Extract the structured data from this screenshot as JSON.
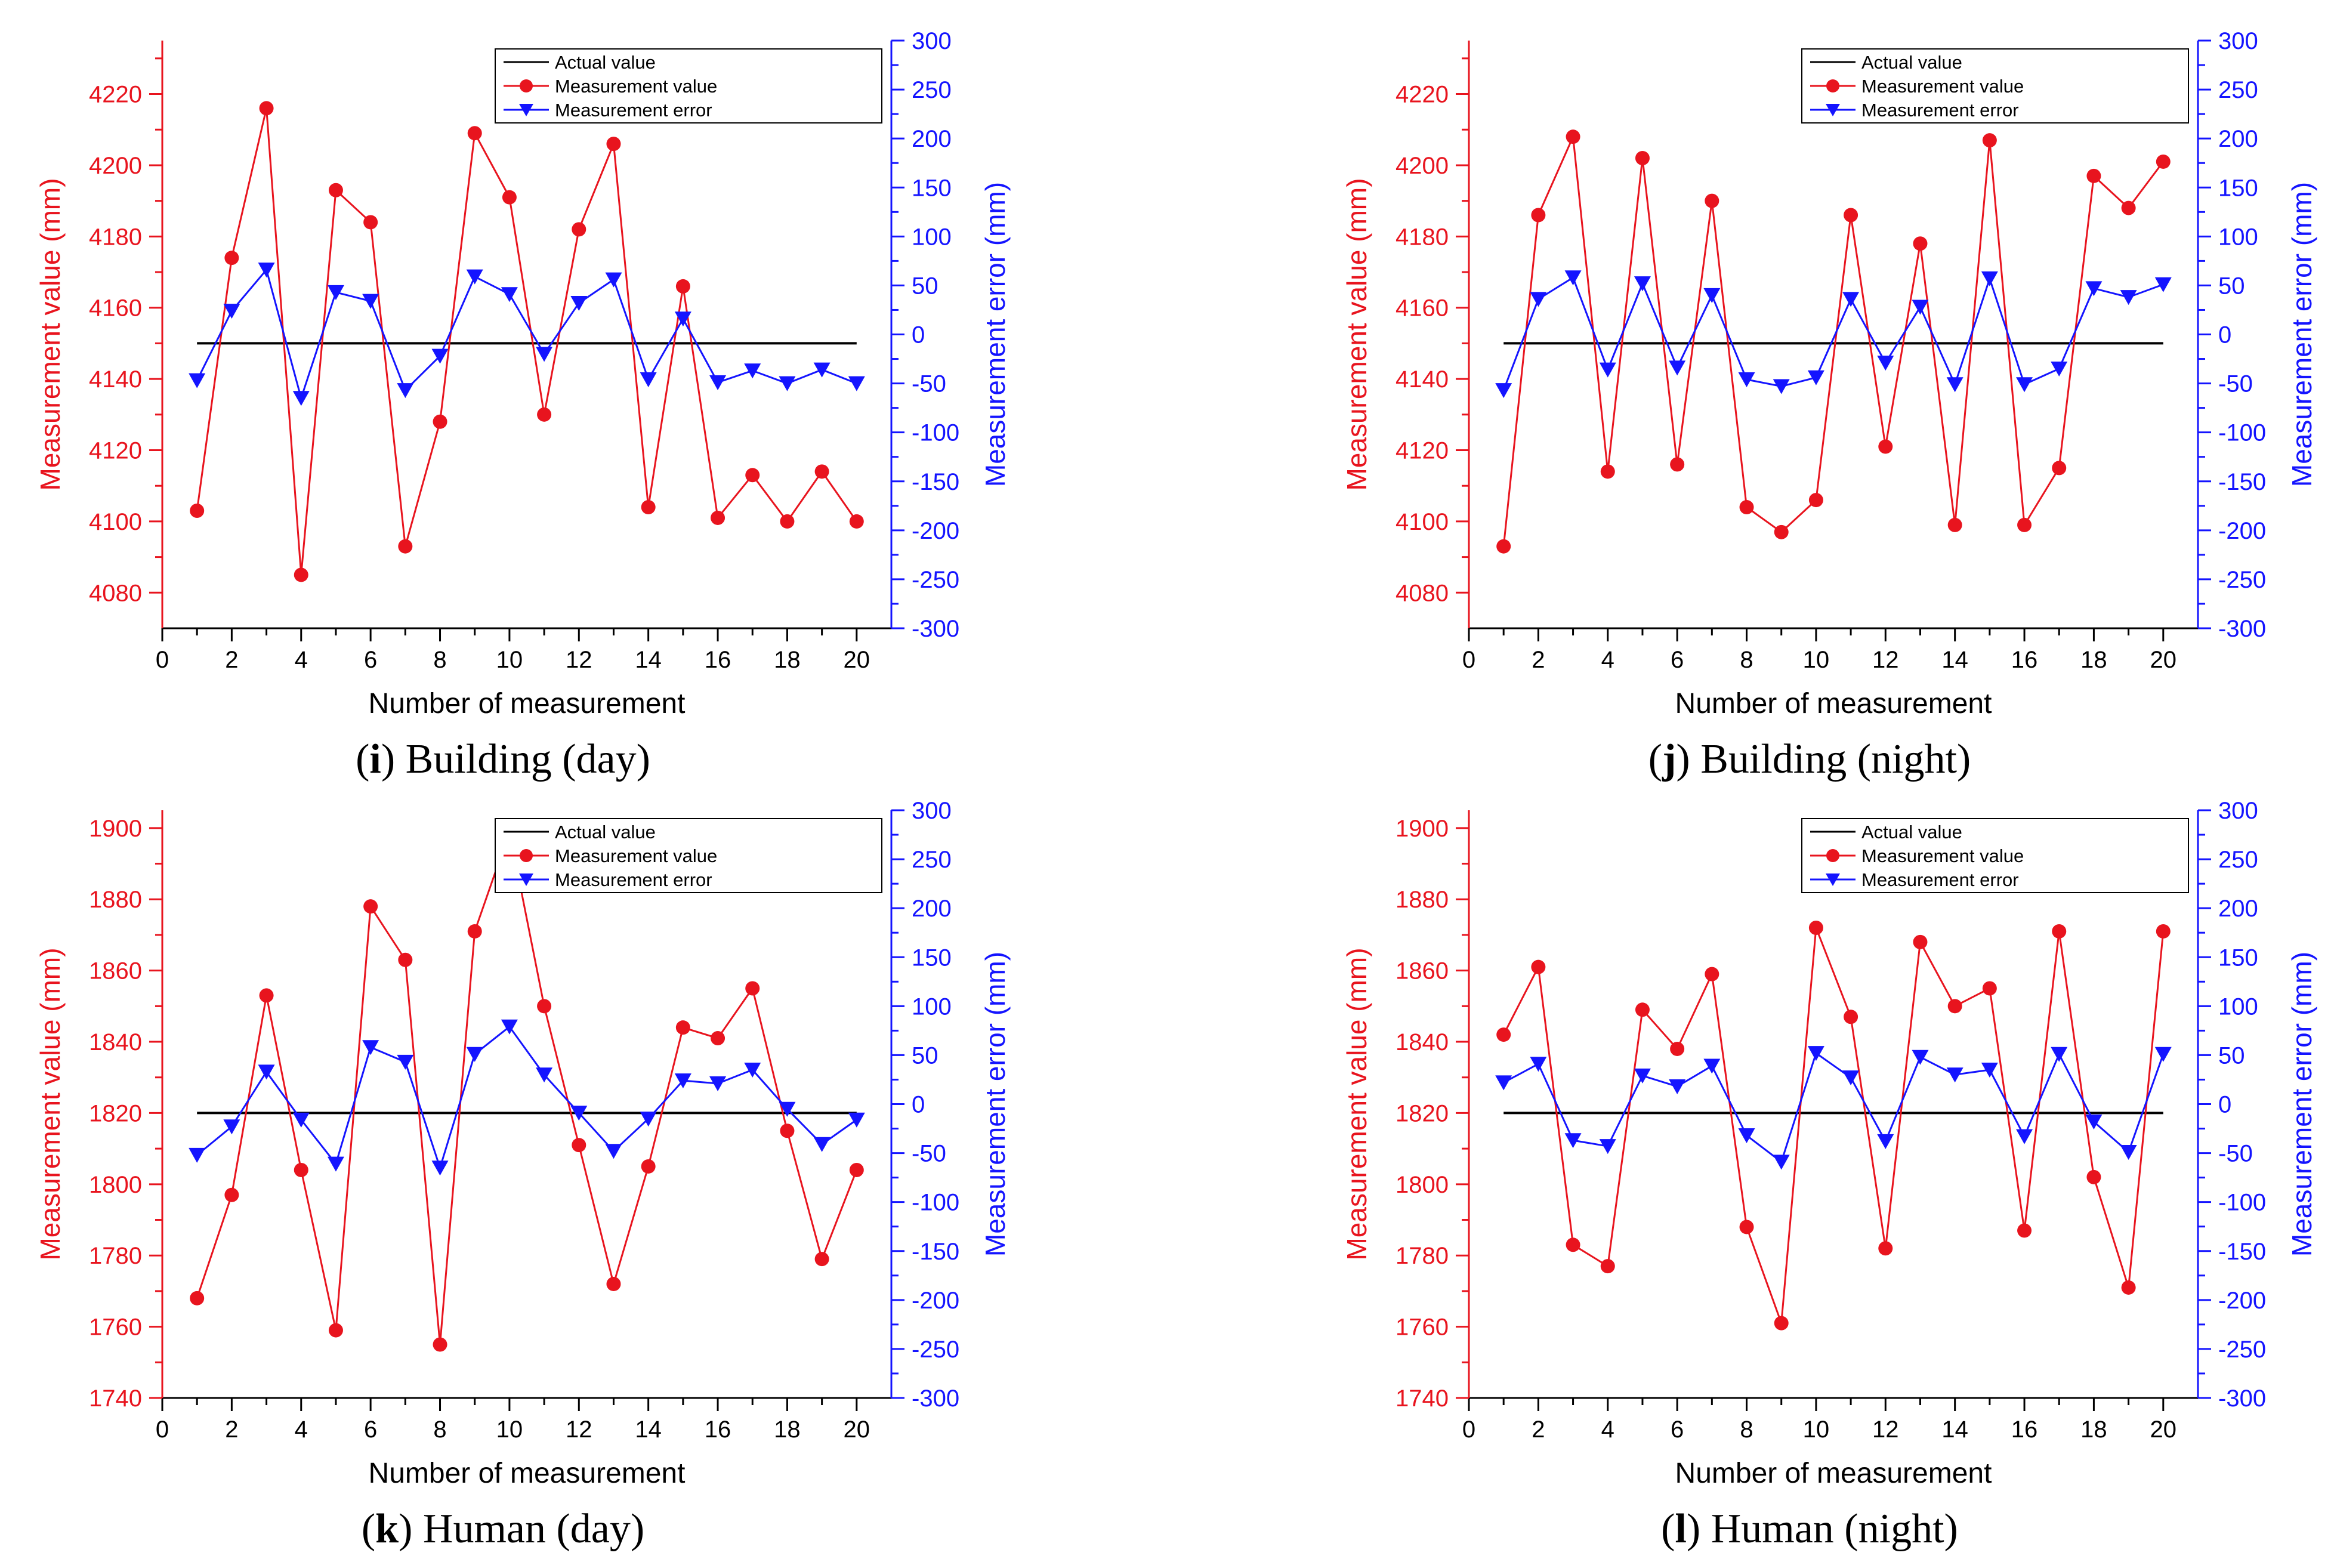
{
  "chart_data": [
    {
      "type": "line",
      "caption": {
        "letter": "i",
        "text": " Building (day)"
      },
      "xlabel": "Number of measurement",
      "ylabel_left": "Measurement value (mm)",
      "ylabel_right": "Measurement error (mm)",
      "xlim": [
        0,
        21
      ],
      "xticks": [
        0,
        2,
        4,
        6,
        8,
        10,
        12,
        14,
        16,
        18,
        20
      ],
      "ylim_left": [
        4070,
        4235
      ],
      "yticks_left": [
        4080,
        4100,
        4120,
        4140,
        4160,
        4180,
        4200,
        4220
      ],
      "ylim_right": [
        -300,
        300
      ],
      "yticks_right": [
        -300,
        -250,
        -200,
        -150,
        -100,
        -50,
        0,
        50,
        100,
        150,
        200,
        250,
        300
      ],
      "legend": "top-right",
      "colors": {
        "actual": "#000000",
        "value": "#e8141e",
        "error": "#1414ff"
      },
      "x": [
        1,
        2,
        3,
        4,
        5,
        6,
        7,
        8,
        9,
        10,
        11,
        12,
        13,
        14,
        15,
        16,
        17,
        18,
        19,
        20
      ],
      "series": [
        {
          "name": "Actual value",
          "axis": "left",
          "marker": "none",
          "values": [
            4150,
            4150,
            4150,
            4150,
            4150,
            4150,
            4150,
            4150,
            4150,
            4150,
            4150,
            4150,
            4150,
            4150,
            4150,
            4150,
            4150,
            4150,
            4150,
            4150
          ]
        },
        {
          "name": "Measurement value",
          "axis": "left",
          "marker": "circle",
          "values": [
            4103,
            4174,
            4216,
            4085,
            4193,
            4184,
            4093,
            4128,
            4209,
            4191,
            4130,
            4182,
            4206,
            4104,
            4166,
            4101,
            4113,
            4100,
            4114,
            4100
          ]
        },
        {
          "name": "Measurement error",
          "axis": "right",
          "marker": "triangle-down",
          "values": [
            -47,
            24,
            66,
            -65,
            43,
            34,
            -57,
            -22,
            59,
            41,
            -20,
            32,
            56,
            -46,
            16,
            -49,
            -37,
            -50,
            -36,
            -50
          ]
        }
      ]
    },
    {
      "type": "line",
      "caption": {
        "letter": "j",
        "text": " Building (night)"
      },
      "xlabel": "Number of measurement",
      "ylabel_left": "Measurement value (mm)",
      "ylabel_right": "Measurement error (mm)",
      "xlim": [
        0,
        21
      ],
      "xticks": [
        0,
        2,
        4,
        6,
        8,
        10,
        12,
        14,
        16,
        18,
        20
      ],
      "ylim_left": [
        4070,
        4235
      ],
      "yticks_left": [
        4080,
        4100,
        4120,
        4140,
        4160,
        4180,
        4200,
        4220
      ],
      "ylim_right": [
        -300,
        300
      ],
      "yticks_right": [
        -300,
        -250,
        -200,
        -150,
        -100,
        -50,
        0,
        50,
        100,
        150,
        200,
        250,
        300
      ],
      "legend": "top-right",
      "colors": {
        "actual": "#000000",
        "value": "#e8141e",
        "error": "#1414ff"
      },
      "x": [
        1,
        2,
        3,
        4,
        5,
        6,
        7,
        8,
        9,
        10,
        11,
        12,
        13,
        14,
        15,
        16,
        17,
        18,
        19,
        20
      ],
      "series": [
        {
          "name": "Actual value",
          "axis": "left",
          "marker": "none",
          "values": [
            4150,
            4150,
            4150,
            4150,
            4150,
            4150,
            4150,
            4150,
            4150,
            4150,
            4150,
            4150,
            4150,
            4150,
            4150,
            4150,
            4150,
            4150,
            4150,
            4150
          ]
        },
        {
          "name": "Measurement value",
          "axis": "left",
          "marker": "circle",
          "values": [
            4093,
            4186,
            4208,
            4114,
            4202,
            4116,
            4190,
            4104,
            4097,
            4106,
            4186,
            4121,
            4178,
            4099,
            4207,
            4099,
            4115,
            4197,
            4188,
            4201
          ]
        },
        {
          "name": "Measurement error",
          "axis": "right",
          "marker": "triangle-down",
          "values": [
            -57,
            36,
            58,
            -36,
            52,
            -34,
            40,
            -46,
            -53,
            -44,
            36,
            -29,
            28,
            -51,
            57,
            -51,
            -35,
            47,
            38,
            51
          ]
        }
      ]
    },
    {
      "type": "line",
      "caption": {
        "letter": "k",
        "text": " Human (day)"
      },
      "xlabel": "Number of measurement",
      "ylabel_left": "Measurement value (mm)",
      "ylabel_right": "Measurement error (mm)",
      "xlim": [
        0,
        21
      ],
      "xticks": [
        0,
        2,
        4,
        6,
        8,
        10,
        12,
        14,
        16,
        18,
        20
      ],
      "ylim_left": [
        1740,
        1905
      ],
      "yticks_left": [
        1740,
        1760,
        1780,
        1800,
        1820,
        1840,
        1860,
        1880,
        1900
      ],
      "ylim_right": [
        -300,
        300
      ],
      "yticks_right": [
        -300,
        -250,
        -200,
        -150,
        -100,
        -50,
        0,
        50,
        100,
        150,
        200,
        250,
        300
      ],
      "legend": "top-right",
      "colors": {
        "actual": "#000000",
        "value": "#e8141e",
        "error": "#1414ff"
      },
      "x": [
        1,
        2,
        3,
        4,
        5,
        6,
        7,
        8,
        9,
        10,
        11,
        12,
        13,
        14,
        15,
        16,
        17,
        18,
        19,
        20
      ],
      "series": [
        {
          "name": "Actual value",
          "axis": "left",
          "marker": "none",
          "values": [
            1820,
            1820,
            1820,
            1820,
            1820,
            1820,
            1820,
            1820,
            1820,
            1820,
            1820,
            1820,
            1820,
            1820,
            1820,
            1820,
            1820,
            1820,
            1820,
            1820
          ]
        },
        {
          "name": "Measurement value",
          "axis": "left",
          "marker": "circle",
          "values": [
            1768,
            1797,
            1853,
            1804,
            1759,
            1878,
            1863,
            1755,
            1871,
            1899,
            1850,
            1811,
            1772,
            1805,
            1844,
            1841,
            1855,
            1815,
            1779,
            1804
          ]
        },
        {
          "name": "Measurement error",
          "axis": "right",
          "marker": "triangle-down",
          "values": [
            -52,
            -23,
            33,
            -16,
            -61,
            58,
            43,
            -65,
            51,
            79,
            30,
            -9,
            -48,
            -15,
            24,
            21,
            35,
            -5,
            -41,
            -16
          ]
        }
      ]
    },
    {
      "type": "line",
      "caption": {
        "letter": "l",
        "text": " Human (night)"
      },
      "xlabel": "Number of measurement",
      "ylabel_left": "Measurement value (mm)",
      "ylabel_right": "Measurement error (mm)",
      "xlim": [
        0,
        21
      ],
      "xticks": [
        0,
        2,
        4,
        6,
        8,
        10,
        12,
        14,
        16,
        18,
        20
      ],
      "ylim_left": [
        1740,
        1905
      ],
      "yticks_left": [
        1740,
        1760,
        1780,
        1800,
        1820,
        1840,
        1860,
        1880,
        1900
      ],
      "ylim_right": [
        -300,
        300
      ],
      "yticks_right": [
        -300,
        -250,
        -200,
        -150,
        -100,
        -50,
        0,
        50,
        100,
        150,
        200,
        250,
        300
      ],
      "legend": "top-right",
      "colors": {
        "actual": "#000000",
        "value": "#e8141e",
        "error": "#1414ff"
      },
      "x": [
        1,
        2,
        3,
        4,
        5,
        6,
        7,
        8,
        9,
        10,
        11,
        12,
        13,
        14,
        15,
        16,
        17,
        18,
        19,
        20
      ],
      "series": [
        {
          "name": "Actual value",
          "axis": "left",
          "marker": "none",
          "values": [
            1820,
            1820,
            1820,
            1820,
            1820,
            1820,
            1820,
            1820,
            1820,
            1820,
            1820,
            1820,
            1820,
            1820,
            1820,
            1820,
            1820,
            1820,
            1820,
            1820
          ]
        },
        {
          "name": "Measurement value",
          "axis": "left",
          "marker": "circle",
          "values": [
            1842,
            1861,
            1783,
            1777,
            1849,
            1838,
            1859,
            1788,
            1761,
            1872,
            1847,
            1782,
            1868,
            1850,
            1855,
            1787,
            1871,
            1802,
            1771,
            1871
          ]
        },
        {
          "name": "Measurement error",
          "axis": "right",
          "marker": "triangle-down",
          "values": [
            22,
            41,
            -37,
            -43,
            29,
            18,
            39,
            -32,
            -59,
            52,
            27,
            -38,
            48,
            30,
            35,
            -33,
            51,
            -18,
            -49,
            51
          ]
        }
      ]
    }
  ]
}
